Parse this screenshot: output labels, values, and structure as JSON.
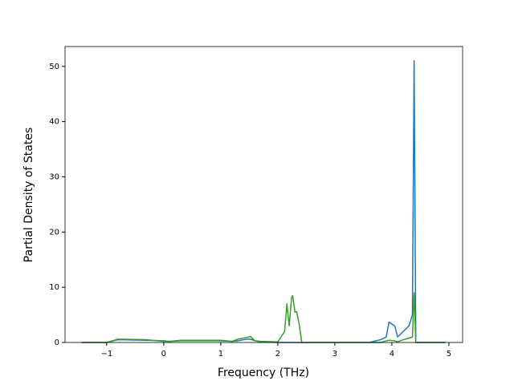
{
  "chart_data": {
    "type": "line",
    "x_label": "Frequency (THz)",
    "y_label": "Partial Density of States",
    "x": [
      -1.44,
      -1.0,
      -0.8,
      -0.3,
      0,
      0.1,
      0.3,
      1.0,
      1.2,
      1.3,
      1.4,
      1.45,
      1.52,
      1.6,
      1.7,
      2.0,
      2.12,
      2.16,
      2.2,
      2.24,
      2.26,
      2.3,
      2.33,
      2.38,
      2.42,
      3.6,
      3.8,
      3.9,
      3.95,
      4.05,
      4.1,
      4.2,
      4.3,
      4.36,
      4.39,
      4.42,
      4.94
    ],
    "series": [
      {
        "color": "#1f77b4",
        "values": [
          0,
          0,
          0.5,
          0.4,
          0.3,
          0.2,
          0.3,
          0.3,
          0.2,
          0.3,
          0.5,
          0.6,
          0.6,
          0.3,
          0.1,
          0,
          0,
          0,
          0,
          0,
          0,
          0,
          0,
          0,
          0,
          0,
          0.5,
          1,
          3.7,
          3,
          1,
          2,
          3,
          5,
          51,
          0,
          0
        ]
      },
      {
        "color": "#3a9a2a",
        "values": [
          0,
          0,
          0.6,
          0.5,
          0.2,
          0.2,
          0.4,
          0.4,
          0.2,
          0.6,
          0.8,
          0.9,
          1.1,
          0.3,
          0.2,
          0.1,
          2,
          7,
          3,
          8,
          8.5,
          5.5,
          5.6,
          3,
          0,
          0,
          0,
          0.3,
          0.4,
          0.3,
          0.1,
          0.5,
          0.8,
          1,
          9,
          0,
          0
        ]
      }
    ],
    "xlim": [
      -1.73,
      5.24
    ],
    "ylim": [
      0,
      53.6
    ],
    "xticks": [
      {
        "value": -1,
        "label": "−1"
      },
      0,
      1,
      2,
      3,
      4,
      5
    ],
    "yticks": [
      0,
      10,
      20,
      30,
      40,
      50
    ],
    "grid": false
  }
}
